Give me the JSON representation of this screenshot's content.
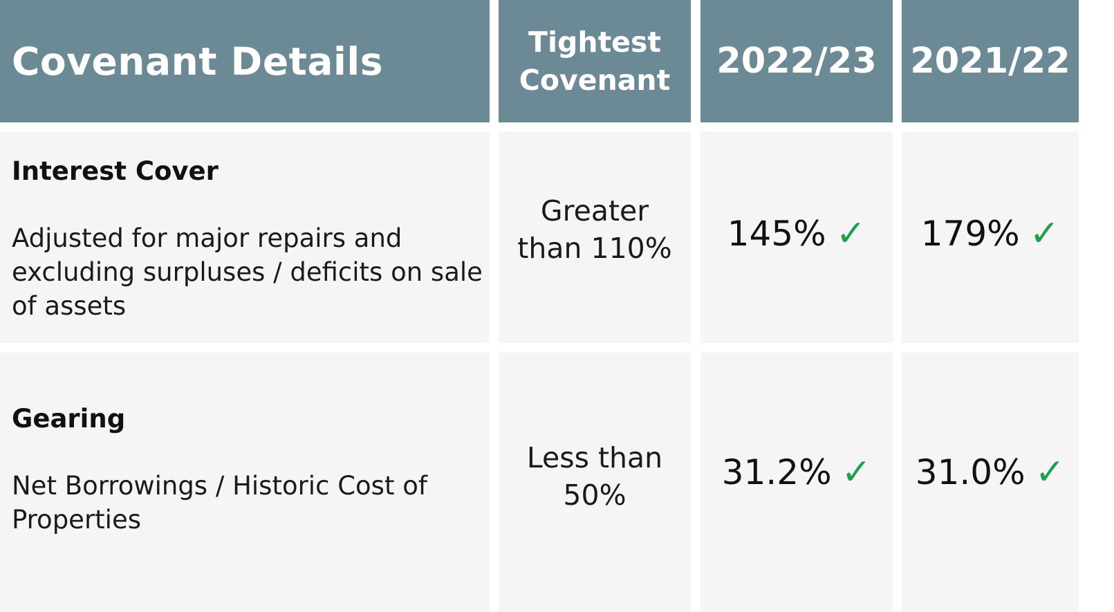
{
  "header": {
    "title": "Covenant Details",
    "covenant_label": "Tightest Covenant",
    "year_current": "2022/23",
    "year_prior": "2021/22"
  },
  "rows": [
    {
      "title": "Interest Cover",
      "description": "Adjusted for major repairs and excluding surpluses / deficits on sale of assets",
      "covenant": "Greater than 110%",
      "value_current": "145%",
      "value_prior": "179%"
    },
    {
      "title": "Gearing",
      "description": "Net Borrowings / Historic Cost of Properties",
      "covenant": "Less than 50%",
      "value_current": "31.2%",
      "value_prior": "31.0%"
    }
  ],
  "check_mark": "✓",
  "colors": {
    "header_bg": "#6c8996",
    "row_bg": "#f5f5f5",
    "check": "#1aa34a"
  }
}
